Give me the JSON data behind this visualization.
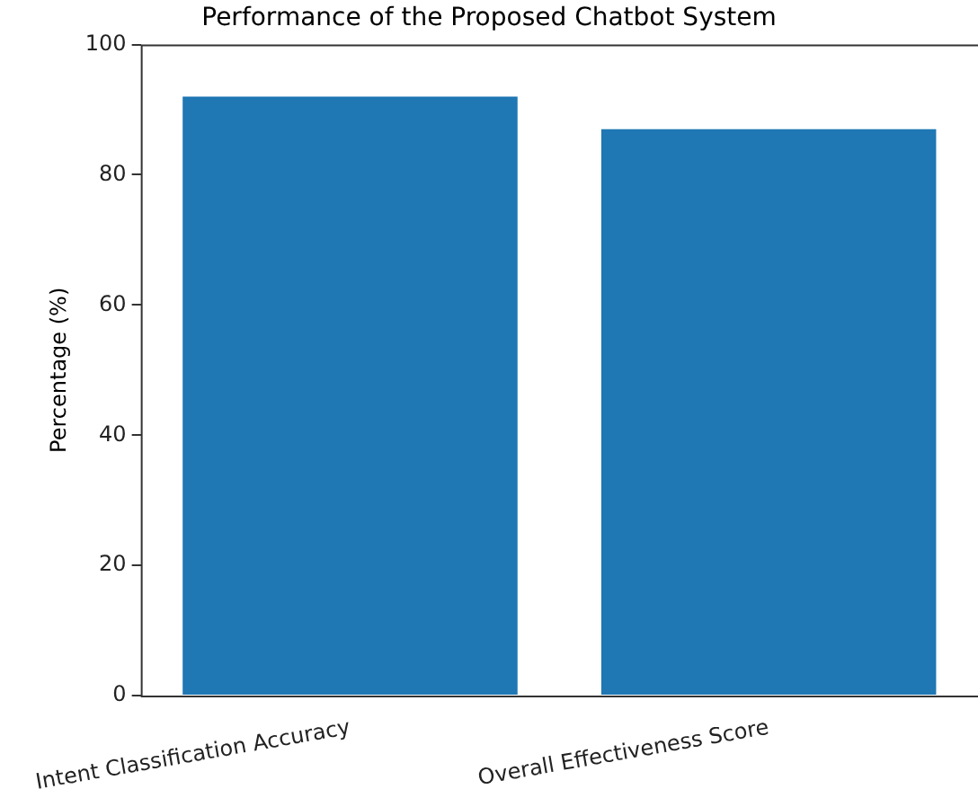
{
  "chart_data": {
    "type": "bar",
    "title": "Performance of the Proposed Chatbot System",
    "ylabel": "Percentage (%)",
    "categories": [
      "Intent Classification Accuracy",
      "Overall Effectiveness Score"
    ],
    "values": [
      92,
      87
    ],
    "color": "#1f77b4",
    "ylim": [
      0,
      100
    ],
    "yticks": [
      0,
      20,
      40,
      60,
      80,
      100
    ],
    "grid": false,
    "legend": false
  }
}
